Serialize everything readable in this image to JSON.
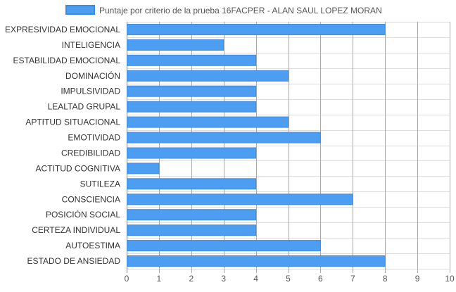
{
  "chart_data": {
    "type": "bar",
    "orientation": "horizontal",
    "categories": [
      "EXPRESIVIDAD EMOCIONAL",
      "INTELIGENCIA",
      "ESTABILIDAD EMOCIONAL",
      "DOMINACIÓN",
      "IMPULSIVIDAD",
      "LEALTAD GRUPAL",
      "APTITUD SITUACIONAL",
      "EMOTIVIDAD",
      "CREDIBILIDAD",
      "ACTITUD COGNITIVA",
      "SUTILEZA",
      "CONSCIENCIA",
      "POSICIÓN SOCIAL",
      "CERTEZA INDIVIDUAL",
      "AUTOESTIMA",
      "ESTADO DE ANSIEDAD"
    ],
    "series": [
      {
        "name": "Puntaje por criterio de la prueba 16FACPER - ALAN SAUL LOPEZ MORAN",
        "values": [
          8,
          3,
          4,
          5,
          4,
          4,
          5,
          6,
          4,
          1,
          4,
          7,
          4,
          4,
          6,
          8
        ]
      }
    ],
    "xlim": [
      0,
      10
    ],
    "xticks": [
      0,
      1,
      2,
      3,
      4,
      5,
      6,
      7,
      8,
      9,
      10
    ],
    "grid": true,
    "legend": "top-center",
    "colors": {
      "bar_fill": "#4d9ef0",
      "bar_stroke": "#3a8be6",
      "grid": "#dddddd",
      "grid_vertical": "#aaaaaa",
      "axis_text": "#555555",
      "label_text": "#333333"
    }
  }
}
